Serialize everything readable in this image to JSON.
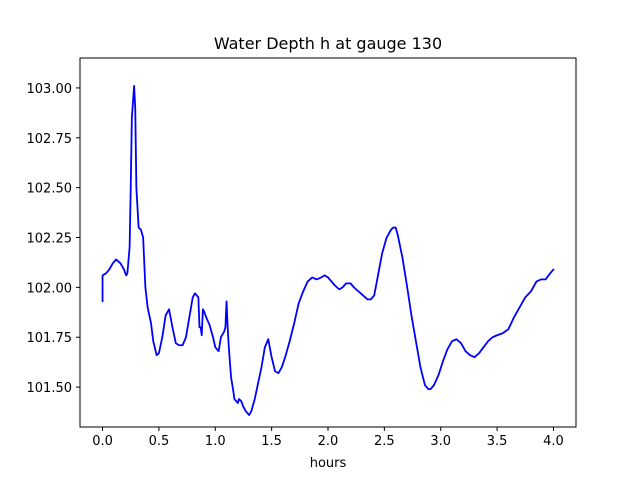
{
  "chart_data": {
    "type": "line",
    "title": "Water Depth h at gauge 130",
    "xlabel": "hours",
    "ylabel": "",
    "xlim": [
      -0.2,
      4.2
    ],
    "ylim": [
      101.3,
      103.15
    ],
    "grid": false,
    "legend": "none",
    "x_ticks": [
      {
        "value": 0.0,
        "label": "0.0"
      },
      {
        "value": 0.5,
        "label": "0.5"
      },
      {
        "value": 1.0,
        "label": "1.0"
      },
      {
        "value": 1.5,
        "label": "1.5"
      },
      {
        "value": 2.0,
        "label": "2.0"
      },
      {
        "value": 2.5,
        "label": "2.5"
      },
      {
        "value": 3.0,
        "label": "3.0"
      },
      {
        "value": 3.5,
        "label": "3.5"
      },
      {
        "value": 4.0,
        "label": "4.0"
      }
    ],
    "y_ticks": [
      {
        "value": 101.5,
        "label": "101.50"
      },
      {
        "value": 101.75,
        "label": "101.75"
      },
      {
        "value": 102.0,
        "label": "102.00"
      },
      {
        "value": 102.25,
        "label": "102.25"
      },
      {
        "value": 102.5,
        "label": "102.50"
      },
      {
        "value": 102.75,
        "label": "102.75"
      },
      {
        "value": 103.0,
        "label": "103.00"
      }
    ],
    "series": [
      {
        "color": "#0000ff",
        "points": [
          [
            0.0,
            101.93
          ],
          [
            0.0,
            102.06
          ],
          [
            0.03,
            102.07
          ],
          [
            0.06,
            102.09
          ],
          [
            0.09,
            102.12
          ],
          [
            0.12,
            102.14
          ],
          [
            0.16,
            102.12
          ],
          [
            0.19,
            102.09
          ],
          [
            0.21,
            102.06
          ],
          [
            0.22,
            102.07
          ],
          [
            0.24,
            102.2
          ],
          [
            0.25,
            102.5
          ],
          [
            0.26,
            102.85
          ],
          [
            0.28,
            103.01
          ],
          [
            0.29,
            102.9
          ],
          [
            0.3,
            102.5
          ],
          [
            0.32,
            102.3
          ],
          [
            0.34,
            102.29
          ],
          [
            0.36,
            102.25
          ],
          [
            0.38,
            102.0
          ],
          [
            0.4,
            101.9
          ],
          [
            0.43,
            101.82
          ],
          [
            0.45,
            101.73
          ],
          [
            0.48,
            101.66
          ],
          [
            0.5,
            101.67
          ],
          [
            0.53,
            101.75
          ],
          [
            0.56,
            101.86
          ],
          [
            0.59,
            101.89
          ],
          [
            0.62,
            101.8
          ],
          [
            0.65,
            101.72
          ],
          [
            0.68,
            101.71
          ],
          [
            0.71,
            101.71
          ],
          [
            0.74,
            101.75
          ],
          [
            0.77,
            101.85
          ],
          [
            0.8,
            101.95
          ],
          [
            0.82,
            101.97
          ],
          [
            0.85,
            101.95
          ],
          [
            0.86,
            101.8
          ],
          [
            0.87,
            101.8
          ],
          [
            0.88,
            101.76
          ],
          [
            0.89,
            101.89
          ],
          [
            0.9,
            101.88
          ],
          [
            0.92,
            101.85
          ],
          [
            0.95,
            101.81
          ],
          [
            0.98,
            101.75
          ],
          [
            1.0,
            101.7
          ],
          [
            1.03,
            101.68
          ],
          [
            1.05,
            101.75
          ],
          [
            1.08,
            101.78
          ],
          [
            1.09,
            101.8
          ],
          [
            1.1,
            101.93
          ],
          [
            1.11,
            101.8
          ],
          [
            1.12,
            101.7
          ],
          [
            1.14,
            101.55
          ],
          [
            1.16,
            101.48
          ],
          [
            1.17,
            101.44
          ],
          [
            1.2,
            101.42
          ],
          [
            1.21,
            101.44
          ],
          [
            1.23,
            101.43
          ],
          [
            1.25,
            101.4
          ],
          [
            1.27,
            101.38
          ],
          [
            1.3,
            101.36
          ],
          [
            1.32,
            101.38
          ],
          [
            1.35,
            101.44
          ],
          [
            1.38,
            101.52
          ],
          [
            1.41,
            101.6
          ],
          [
            1.44,
            101.7
          ],
          [
            1.47,
            101.74
          ],
          [
            1.5,
            101.65
          ],
          [
            1.53,
            101.58
          ],
          [
            1.56,
            101.57
          ],
          [
            1.59,
            101.6
          ],
          [
            1.62,
            101.65
          ],
          [
            1.66,
            101.73
          ],
          [
            1.7,
            101.82
          ],
          [
            1.74,
            101.92
          ],
          [
            1.78,
            101.98
          ],
          [
            1.82,
            102.03
          ],
          [
            1.86,
            102.05
          ],
          [
            1.9,
            102.04
          ],
          [
            1.94,
            102.05
          ],
          [
            1.97,
            102.06
          ],
          [
            2.0,
            102.05
          ],
          [
            2.03,
            102.03
          ],
          [
            2.06,
            102.01
          ],
          [
            2.1,
            101.99
          ],
          [
            2.13,
            102.0
          ],
          [
            2.16,
            102.02
          ],
          [
            2.2,
            102.02
          ],
          [
            2.23,
            102.0
          ],
          [
            2.27,
            101.98
          ],
          [
            2.31,
            101.96
          ],
          [
            2.35,
            101.94
          ],
          [
            2.38,
            101.94
          ],
          [
            2.41,
            101.96
          ],
          [
            2.44,
            102.05
          ],
          [
            2.48,
            102.17
          ],
          [
            2.52,
            102.25
          ],
          [
            2.56,
            102.29
          ],
          [
            2.58,
            102.3
          ],
          [
            2.6,
            102.3
          ],
          [
            2.62,
            102.26
          ],
          [
            2.66,
            102.15
          ],
          [
            2.7,
            102.01
          ],
          [
            2.74,
            101.86
          ],
          [
            2.78,
            101.73
          ],
          [
            2.82,
            101.6
          ],
          [
            2.86,
            101.51
          ],
          [
            2.89,
            101.49
          ],
          [
            2.91,
            101.49
          ],
          [
            2.94,
            101.51
          ],
          [
            2.98,
            101.56
          ],
          [
            3.02,
            101.63
          ],
          [
            3.06,
            101.69
          ],
          [
            3.1,
            101.73
          ],
          [
            3.14,
            101.74
          ],
          [
            3.18,
            101.72
          ],
          [
            3.22,
            101.68
          ],
          [
            3.26,
            101.66
          ],
          [
            3.3,
            101.65
          ],
          [
            3.34,
            101.67
          ],
          [
            3.38,
            101.7
          ],
          [
            3.42,
            101.73
          ],
          [
            3.46,
            101.75
          ],
          [
            3.5,
            101.76
          ],
          [
            3.55,
            101.77
          ],
          [
            3.6,
            101.79
          ],
          [
            3.65,
            101.85
          ],
          [
            3.7,
            101.9
          ],
          [
            3.75,
            101.95
          ],
          [
            3.8,
            101.98
          ],
          [
            3.85,
            102.03
          ],
          [
            3.89,
            102.04
          ],
          [
            3.93,
            102.04
          ],
          [
            3.97,
            102.07
          ],
          [
            4.0,
            102.09
          ]
        ]
      }
    ]
  }
}
